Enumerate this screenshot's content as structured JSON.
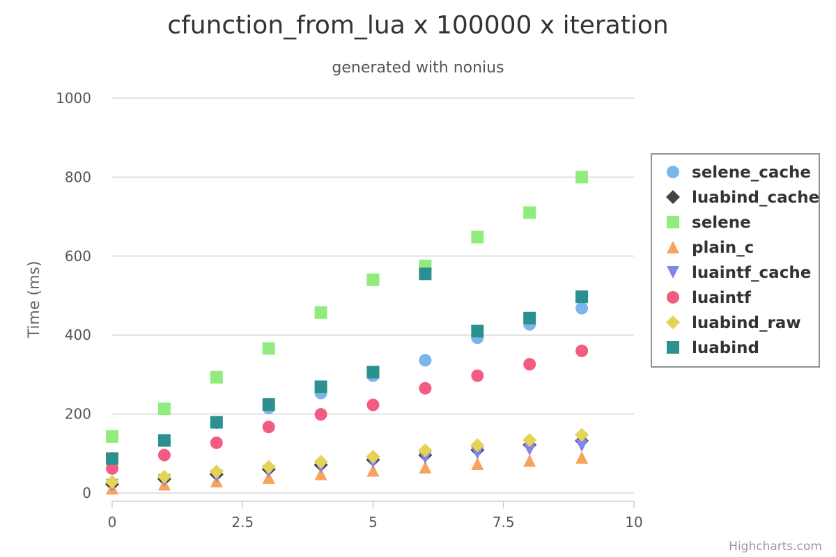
{
  "chart_data": {
    "type": "scatter",
    "title": "cfunction_from_lua x 100000 x iteration",
    "subtitle": "generated with nonius",
    "xlabel": "",
    "ylabel": "Time (ms)",
    "xlim": [
      0,
      10
    ],
    "ylim": [
      0,
      1000
    ],
    "x_ticks": [
      "0",
      "2.5",
      "5",
      "7.5",
      "10"
    ],
    "y_ticks": [
      "0",
      "200",
      "400",
      "600",
      "800",
      "1000"
    ],
    "grid": true,
    "legend_position": "right",
    "x": [
      0,
      1,
      2,
      3,
      4,
      5,
      6,
      7,
      8,
      9
    ],
    "series": [
      {
        "name": "selene_cache",
        "marker": "circle",
        "color": "#7cb5ec",
        "values": [
          88,
          133,
          178,
          215,
          253,
          297,
          336,
          393,
          427,
          468
        ]
      },
      {
        "name": "luabind_cache",
        "marker": "diamond",
        "color": "#434348",
        "values": [
          22,
          35,
          47,
          60,
          71,
          84,
          96,
          109,
          122,
          132
        ]
      },
      {
        "name": "selene",
        "marker": "square",
        "color": "#90ed7d",
        "values": [
          143,
          213,
          293,
          366,
          457,
          540,
          575,
          648,
          710,
          800
        ]
      },
      {
        "name": "plain_c",
        "marker": "triangle",
        "color": "#f7a35c",
        "values": [
          12,
          22,
          30,
          39,
          48,
          57,
          65,
          74,
          82,
          90
        ]
      },
      {
        "name": "luaintf_cache",
        "marker": "triangle-down",
        "color": "#8085e9",
        "values": [
          20,
          32,
          43,
          55,
          66,
          78,
          89,
          101,
          110,
          120
        ]
      },
      {
        "name": "luaintf",
        "marker": "circle",
        "color": "#f15c80",
        "values": [
          62,
          96,
          127,
          167,
          199,
          223,
          265,
          297,
          326,
          360
        ]
      },
      {
        "name": "luabind_raw",
        "marker": "diamond",
        "color": "#e4d354",
        "values": [
          28,
          41,
          54,
          66,
          79,
          92,
          108,
          121,
          134,
          147
        ]
      },
      {
        "name": "luabind",
        "marker": "square",
        "color": "#2b908f",
        "values": [
          87,
          133,
          179,
          224,
          269,
          306,
          555,
          410,
          443,
          497
        ]
      }
    ]
  },
  "credit": "Highcharts.com"
}
